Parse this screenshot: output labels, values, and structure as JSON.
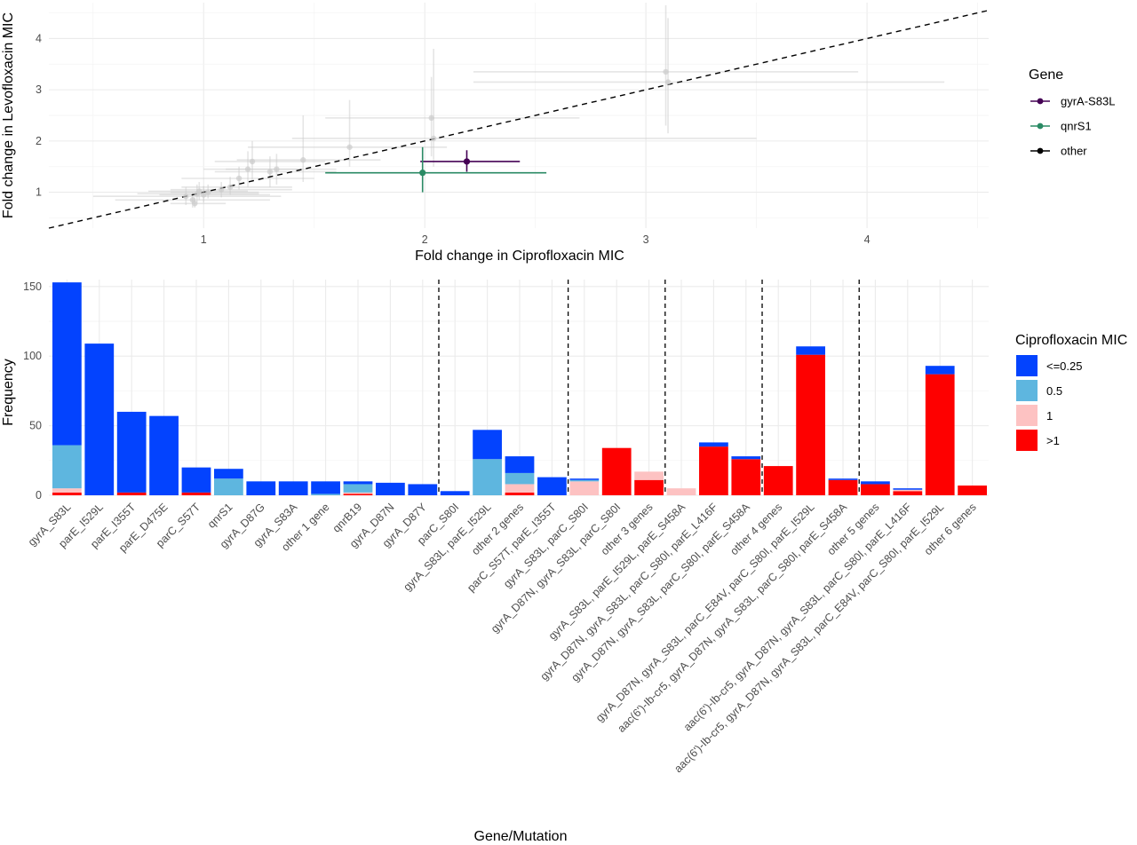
{
  "chart_data": [
    {
      "type": "scatter",
      "xlabel": "Fold change in Ciprofloxacin MIC",
      "ylabel": "Fold change in Levofloxacin MIC",
      "xlim": [
        0.3,
        4.55
      ],
      "ylim": [
        0.3,
        4.7
      ],
      "xticks": [
        "1",
        "2",
        "3",
        "4"
      ],
      "yticks": [
        "1",
        "2",
        "3",
        "4"
      ],
      "grid": true,
      "reference_line": {
        "style": "dashed",
        "slope": 1,
        "intercept": 0
      },
      "legend": {
        "title": "Gene",
        "position": "right",
        "entries": [
          {
            "label": "gyrA-S83L",
            "color": "#440154"
          },
          {
            "label": "qnrS1",
            "color": "#2a8a64"
          },
          {
            "label": "other",
            "color": "#000000"
          }
        ]
      },
      "points": [
        {
          "gene": "gyrA-S83L",
          "x": 2.19,
          "y": 1.6,
          "xerr": [
            1.98,
            2.43
          ],
          "yerr": [
            1.4,
            1.82
          ]
        },
        {
          "gene": "qnrS1",
          "x": 1.99,
          "y": 1.38,
          "xerr": [
            1.55,
            2.55
          ],
          "yerr": [
            1.0,
            1.88
          ]
        },
        {
          "gene": "other",
          "x": 0.92,
          "y": 0.92,
          "xerr": [
            0.5,
            1.35
          ],
          "yerr": [
            0.75,
            1.1
          ]
        },
        {
          "gene": "other",
          "x": 0.95,
          "y": 0.85,
          "xerr": [
            0.6,
            1.3
          ],
          "yerr": [
            0.7,
            1.0
          ]
        },
        {
          "gene": "other",
          "x": 0.97,
          "y": 0.97,
          "xerr": [
            0.7,
            1.25
          ],
          "yerr": [
            0.8,
            1.15
          ]
        },
        {
          "gene": "other",
          "x": 0.98,
          "y": 1.02,
          "xerr": [
            0.75,
            1.2
          ],
          "yerr": [
            0.85,
            1.2
          ]
        },
        {
          "gene": "other",
          "x": 1.0,
          "y": 0.95,
          "xerr": [
            0.8,
            1.3
          ],
          "yerr": [
            0.8,
            1.12
          ]
        },
        {
          "gene": "other",
          "x": 1.02,
          "y": 1.0,
          "xerr": [
            0.85,
            1.25
          ],
          "yerr": [
            0.88,
            1.15
          ]
        },
        {
          "gene": "other",
          "x": 0.96,
          "y": 0.78,
          "xerr": [
            0.85,
            1.1
          ],
          "yerr": [
            0.7,
            0.9
          ]
        },
        {
          "gene": "other",
          "x": 1.08,
          "y": 1.05,
          "xerr": [
            0.85,
            1.4
          ],
          "yerr": [
            0.9,
            1.2
          ]
        },
        {
          "gene": "other",
          "x": 1.12,
          "y": 1.1,
          "xerr": [
            0.9,
            1.4
          ],
          "yerr": [
            0.95,
            1.3
          ]
        },
        {
          "gene": "other",
          "x": 1.16,
          "y": 1.27,
          "xerr": [
            0.9,
            1.5
          ],
          "yerr": [
            1.05,
            1.5
          ]
        },
        {
          "gene": "other",
          "x": 1.2,
          "y": 1.45,
          "xerr": [
            1.0,
            1.45
          ],
          "yerr": [
            1.1,
            1.8
          ]
        },
        {
          "gene": "other",
          "x": 1.22,
          "y": 1.6,
          "xerr": [
            1.05,
            1.55
          ],
          "yerr": [
            1.2,
            2.0
          ]
        },
        {
          "gene": "other",
          "x": 1.3,
          "y": 1.4,
          "xerr": [
            1.05,
            1.6
          ],
          "yerr": [
            1.1,
            1.7
          ]
        },
        {
          "gene": "other",
          "x": 1.33,
          "y": 1.45,
          "xerr": [
            1.1,
            1.6
          ],
          "yerr": [
            1.15,
            1.75
          ]
        },
        {
          "gene": "other",
          "x": 1.45,
          "y": 1.63,
          "xerr": [
            1.15,
            1.8
          ],
          "yerr": [
            1.2,
            2.5
          ]
        },
        {
          "gene": "other",
          "x": 1.66,
          "y": 1.88,
          "xerr": [
            1.2,
            2.1
          ],
          "yerr": [
            1.5,
            2.8
          ]
        },
        {
          "gene": "other",
          "x": 2.03,
          "y": 2.45,
          "xerr": [
            1.55,
            2.7
          ],
          "yerr": [
            1.7,
            3.25
          ]
        },
        {
          "gene": "other",
          "x": 2.04,
          "y": 2.05,
          "xerr": [
            1.4,
            3.5
          ],
          "yerr": [
            1.5,
            3.8
          ]
        },
        {
          "gene": "other",
          "x": 3.09,
          "y": 3.35,
          "xerr": [
            2.22,
            3.96
          ],
          "yerr": [
            2.3,
            4.65
          ]
        },
        {
          "gene": "other",
          "x": 3.1,
          "y": 3.15,
          "xerr": [
            2.22,
            4.35
          ],
          "yerr": [
            2.15,
            4.4
          ]
        }
      ]
    },
    {
      "type": "bar",
      "stacked": true,
      "xlabel": "Gene/Mutation",
      "ylabel": "Frequency",
      "ylim": [
        0,
        155
      ],
      "yticks": [
        "0",
        "50",
        "100",
        "150"
      ],
      "grid": true,
      "group_separators_after": [
        11,
        15,
        18,
        21,
        24
      ],
      "legend": {
        "title": "Ciprofloxacin MIC",
        "position": "right",
        "entries": [
          {
            "label": "<=0.25",
            "color": "#0343fe"
          },
          {
            "label": "0.5",
            "color": "#5eb6df"
          },
          {
            "label": "1",
            "color": "#fdc2c2"
          },
          {
            "label": ">1",
            "color": "#fe0000"
          }
        ]
      },
      "categories": [
        "gyrA_S83L",
        "parE_I529L",
        "parE_I355T",
        "parE_D475E",
        "parC_S57T",
        "qnrS1",
        "gyrA_D87G",
        "gyrA_S83A",
        "other 1 gene",
        "qnrB19",
        "gyrA_D87N",
        "gyrA_D87Y",
        "parC_S80I",
        "gyrA_S83L, parE_I529L",
        "other 2 genes",
        "parC_S57T, parE_I355T",
        "gyrA_S83L, parC_S80I",
        "gyrA_D87N, gyrA_S83L, parC_S80I",
        "other 3 genes",
        "gyrA_S83L, parE_I529L, parE_S458A",
        "gyrA_D87N, gyrA_S83L, parC_S80I, parE_L416F",
        "gyrA_D87N, gyrA_S83L, parC_S80I, parE_S458A",
        "other 4 genes",
        "gyrA_D87N, gyrA_S83L, parC_E84V, parC_S80I, parE_I529L",
        "aac(6')-Ib-cr5, gyrA_D87N, gyrA_S83L, parC_S80I, parE_S458A",
        "other 5 genes",
        "aac(6')-Ib-cr5, gyrA_D87N, gyrA_S83L, parC_S80I, parE_L416F",
        "aac(6')-Ib-cr5, gyrA_D87N, gyrA_S83L, parC_E84V, parC_S80I, parE_I529L",
        "other 6 genes"
      ],
      "series": [
        {
          "name": "<=0.25",
          "values": [
            117,
            109,
            58,
            57,
            18,
            7,
            10,
            10,
            9,
            2,
            9,
            8,
            3,
            21,
            12,
            13,
            1,
            0,
            0,
            0,
            3,
            2,
            0,
            6,
            1,
            2,
            1,
            6,
            0
          ]
        },
        {
          "name": "0.5",
          "values": [
            31,
            0,
            0,
            0,
            0,
            12,
            0,
            0,
            1,
            6,
            0,
            0,
            0,
            26,
            8,
            0,
            1,
            0,
            0,
            0,
            0,
            0,
            0,
            0,
            0,
            0,
            0,
            0,
            0
          ]
        },
        {
          "name": "1",
          "values": [
            3,
            0,
            0,
            0,
            0,
            0,
            0,
            0,
            0,
            1,
            0,
            0,
            0,
            0,
            6,
            0,
            10,
            0,
            6,
            5,
            0,
            0,
            0,
            0,
            0,
            0,
            1,
            0,
            0
          ]
        },
        {
          "name": ">1",
          "values": [
            2,
            0,
            2,
            0,
            2,
            0,
            0,
            0,
            0,
            1,
            0,
            0,
            0,
            0,
            2,
            0,
            0,
            34,
            11,
            0,
            35,
            26,
            21,
            101,
            11,
            8,
            3,
            87,
            7
          ]
        }
      ]
    }
  ]
}
